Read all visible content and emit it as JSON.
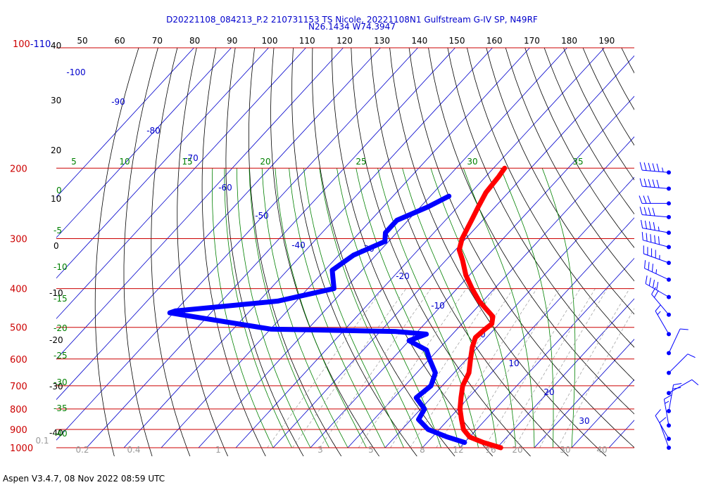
{
  "header": {
    "line1": "D20221108_084213_P.2 210731153 TS Nicole, 20221108N1 Gulfstream G-IV SP, N49RF",
    "line2": "N26.1434 W74.3947"
  },
  "footer": "Aspen V3.4.7, 08 Nov 2022  08:59 UTC",
  "colors": {
    "temperature": "#ff0000",
    "dewpoint": "#0000ff",
    "isobar": "#cc0000",
    "isotherm": "#0000cc",
    "mixing_ratio": "#999999",
    "moist_adiabat": "#008000",
    "dry_adiabat": "#000000",
    "theta_label": "#000000",
    "wind": "#0000ff"
  },
  "chart_data": {
    "type": "skew-t log-p",
    "y_scale": "log",
    "ylim_hpa": [
      1000,
      100
    ],
    "top_label": "100-110",
    "pressure_labels": [
      200,
      300,
      400,
      500,
      600,
      700,
      800,
      900,
      1000
    ],
    "theta_tick_labels": [
      50,
      60,
      70,
      80,
      90,
      100,
      110,
      120,
      130,
      140,
      150,
      160,
      170,
      180,
      190
    ],
    "left_theta_labels": [
      40,
      30,
      20,
      10,
      0,
      -10,
      -20,
      -30,
      -40
    ],
    "isotherm_labels": [
      -100,
      -90,
      -80,
      -70,
      -60,
      -50,
      -40,
      -30,
      -20,
      -10,
      0,
      10,
      20,
      30
    ],
    "moist_adiabat_labels": [
      5,
      10,
      15,
      20,
      25,
      30,
      35
    ],
    "left_moist_labels": [
      0,
      -5,
      -10,
      -15,
      -20,
      -25,
      -30,
      -35,
      -40
    ],
    "mixing_ratio_labels": [
      "0.1",
      "0.2",
      "0.4",
      "1",
      "3",
      "5",
      "8",
      "12",
      "16",
      "20",
      "30",
      "40"
    ],
    "temperature_profile": [
      [
        200,
        -47
      ],
      [
        210,
        -46.5
      ],
      [
        230,
        -46
      ],
      [
        250,
        -44.5
      ],
      [
        270,
        -43
      ],
      [
        300,
        -41
      ],
      [
        320,
        -39
      ],
      [
        340,
        -35.5
      ],
      [
        370,
        -31
      ],
      [
        400,
        -26
      ],
      [
        430,
        -21
      ],
      [
        470,
        -13.5
      ],
      [
        490,
        -12
      ],
      [
        505,
        -12.5
      ],
      [
        530,
        -13
      ],
      [
        560,
        -11.5
      ],
      [
        600,
        -9
      ],
      [
        650,
        -6
      ],
      [
        700,
        -4.5
      ],
      [
        750,
        -2
      ],
      [
        800,
        0.5
      ],
      [
        850,
        3.5
      ],
      [
        900,
        6.5
      ],
      [
        940,
        10
      ],
      [
        970,
        15
      ],
      [
        1000,
        21
      ]
    ],
    "dewpoint_profile": [
      [
        235,
        -55
      ],
      [
        250,
        -58
      ],
      [
        270,
        -63
      ],
      [
        290,
        -63
      ],
      [
        305,
        -61
      ],
      [
        330,
        -66
      ],
      [
        360,
        -68
      ],
      [
        400,
        -63
      ],
      [
        430,
        -75
      ],
      [
        455,
        -100
      ],
      [
        460,
        -101
      ],
      [
        505,
        -70
      ],
      [
        512,
        -36
      ],
      [
        520,
        -27
      ],
      [
        540,
        -30
      ],
      [
        570,
        -23
      ],
      [
        600,
        -20
      ],
      [
        650,
        -15
      ],
      [
        700,
        -13
      ],
      [
        750,
        -14
      ],
      [
        800,
        -9
      ],
      [
        850,
        -8
      ],
      [
        900,
        -3
      ],
      [
        940,
        4
      ],
      [
        970,
        10
      ]
    ],
    "wind_barbs": [
      {
        "pressure": 205,
        "direction": 275,
        "speed_kt": 55
      },
      {
        "pressure": 225,
        "direction": 275,
        "speed_kt": 50
      },
      {
        "pressure": 245,
        "direction": 270,
        "speed_kt": 30
      },
      {
        "pressure": 265,
        "direction": 275,
        "speed_kt": 40
      },
      {
        "pressure": 290,
        "direction": 280,
        "speed_kt": 45
      },
      {
        "pressure": 315,
        "direction": 285,
        "speed_kt": 50
      },
      {
        "pressure": 345,
        "direction": 290,
        "speed_kt": 45
      },
      {
        "pressure": 380,
        "direction": 295,
        "speed_kt": 35
      },
      {
        "pressure": 420,
        "direction": 300,
        "speed_kt": 40
      },
      {
        "pressure": 465,
        "direction": 320,
        "speed_kt": 20
      },
      {
        "pressure": 520,
        "direction": 330,
        "speed_kt": 15
      },
      {
        "pressure": 580,
        "direction": 25,
        "speed_kt": 10
      },
      {
        "pressure": 650,
        "direction": 45,
        "speed_kt": 10
      },
      {
        "pressure": 730,
        "direction": 60,
        "speed_kt": 10
      },
      {
        "pressure": 810,
        "direction": 10,
        "speed_kt": 20
      },
      {
        "pressure": 880,
        "direction": 350,
        "speed_kt": 15
      },
      {
        "pressure": 950,
        "direction": 330,
        "speed_kt": 10
      },
      {
        "pressure": 1000,
        "direction": 340,
        "speed_kt": 10
      }
    ]
  }
}
